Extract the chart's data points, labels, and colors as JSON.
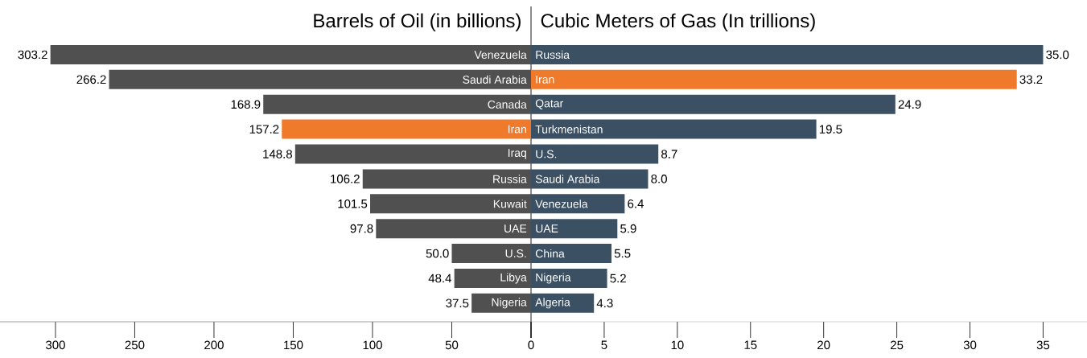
{
  "chart_data": [
    {
      "type": "bar",
      "orientation": "horizontal",
      "title": "Barrels of Oil (in billions)",
      "categories": [
        "Venezuela",
        "Saudi Arabia",
        "Canada",
        "Iran",
        "Iraq",
        "Russia",
        "Kuwait",
        "UAE",
        "U.S.",
        "Libya",
        "Nigeria"
      ],
      "values": [
        303.2,
        266.2,
        168.9,
        157.2,
        148.8,
        106.2,
        101.5,
        97.8,
        50.0,
        48.4,
        37.5
      ],
      "value_labels": [
        "303.2",
        "266.2",
        "168.9",
        "157.2",
        "148.8",
        "106.2",
        "101.5",
        "97.8",
        "50.0",
        "48.4",
        "37.5"
      ],
      "colors": [
        "#505050",
        "#505050",
        "#505050",
        "#f07a2b",
        "#505050",
        "#505050",
        "#505050",
        "#505050",
        "#505050",
        "#505050",
        "#505050"
      ],
      "xlim": [
        335,
        0
      ],
      "xticks": [
        300,
        250,
        200,
        150,
        100,
        50,
        {
          "value": 0,
          "label": null
        }
      ]
    },
    {
      "type": "bar",
      "orientation": "horizontal",
      "title": "Cubic Meters of Gas (In trillions)",
      "categories": [
        "Russia",
        "Iran",
        "Qatar",
        "Turkmenistan",
        "U.S.",
        "Saudi Arabia",
        "Venezuela",
        "UAE",
        "China",
        "Nigeria",
        "Algeria"
      ],
      "values": [
        35.0,
        33.2,
        24.9,
        19.5,
        8.7,
        8.0,
        6.4,
        5.9,
        5.5,
        5.2,
        4.3
      ],
      "value_labels": [
        "35.0",
        "33.2",
        "24.9",
        "19.5",
        "8.7",
        "8.0",
        "6.4",
        "5.9",
        "5.5",
        "5.2",
        "4.3"
      ],
      "colors": [
        "#3c5064",
        "#f07a2b",
        "#3c5064",
        "#3c5064",
        "#3c5064",
        "#3c5064",
        "#3c5064",
        "#3c5064",
        "#3c5064",
        "#3c5064",
        "#3c5064"
      ],
      "xlim": [
        0,
        38
      ],
      "xticks": [
        0,
        5,
        10,
        15,
        20,
        25,
        30,
        35
      ]
    }
  ]
}
